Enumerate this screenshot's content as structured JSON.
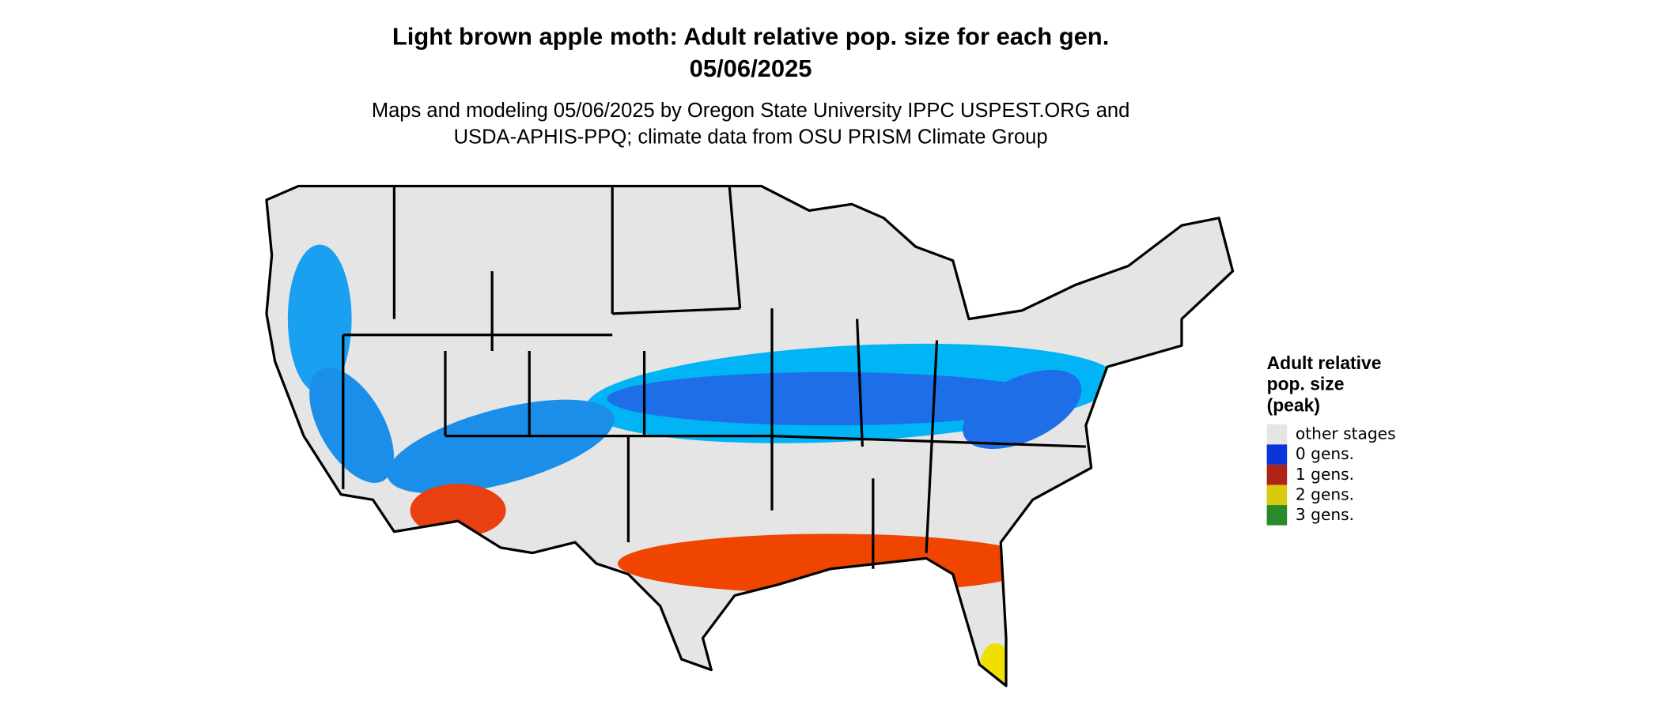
{
  "header": {
    "title": [
      "Light brown apple moth: Adult relative pop. size for each gen.",
      "05/06/2025"
    ],
    "subtitle": [
      "Maps and modeling 05/06/2025 by Oregon State University IPPC USPEST.ORG and",
      "USDA-APHIS-PPQ; climate data from OSU PRISM Climate Group"
    ]
  },
  "legend": {
    "title": [
      "Adult relative",
      "pop. size",
      "(peak)"
    ],
    "items": [
      {
        "label": "other stages",
        "color": "#e5e5e5"
      },
      {
        "label": "0 gens.",
        "color": "#0a35d8"
      },
      {
        "label": "1 gens.",
        "color": "#b02418"
      },
      {
        "label": "2 gens.",
        "color": "#d9c90f"
      },
      {
        "label": "3 gens.",
        "color": "#2a8a2a"
      }
    ]
  }
}
